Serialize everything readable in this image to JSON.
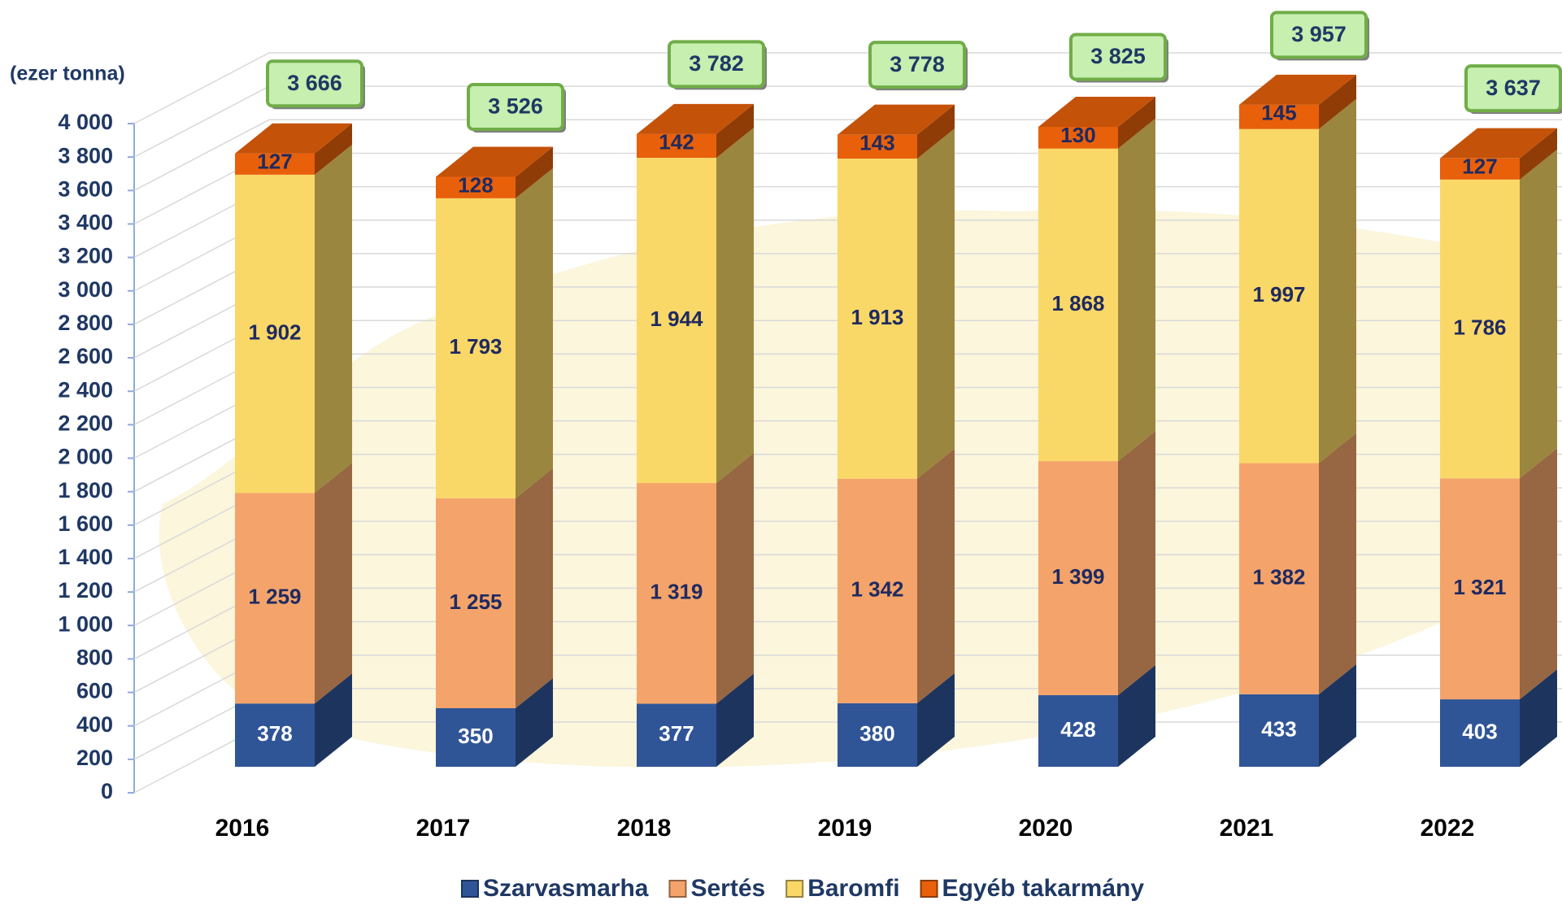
{
  "chart_data": {
    "type": "bar",
    "stacked": true,
    "y_axis_label": "(ezer tonna)",
    "categories": [
      "2016",
      "2017",
      "2018",
      "2019",
      "2020",
      "2021",
      "2022"
    ],
    "series": [
      {
        "name": "Szarvasmarha",
        "color": "#2f5597",
        "values": [
          378,
          350,
          377,
          380,
          428,
          433,
          403
        ]
      },
      {
        "name": "Sertés",
        "color": "#f4a46a",
        "values": [
          1259,
          1255,
          1319,
          1342,
          1399,
          1382,
          1321
        ],
        "value_labels": [
          "1 259",
          "1 255",
          "1 319",
          "1 342",
          "1 399",
          "1 382",
          "1 321"
        ]
      },
      {
        "name": "Baromfi",
        "color": "#fad868",
        "values": [
          1902,
          1793,
          1944,
          1913,
          1868,
          1997,
          1786
        ],
        "value_labels": [
          "1 902",
          "1 793",
          "1 944",
          "1 913",
          "1 868",
          "1 997",
          "1 786"
        ]
      },
      {
        "name": "Egyéb takarmány",
        "color": "#e8600a",
        "values": [
          127,
          128,
          142,
          143,
          130,
          145,
          127
        ]
      }
    ],
    "totals": {
      "values": [
        3666,
        3526,
        3782,
        3778,
        3825,
        3957,
        3637
      ],
      "value_labels": [
        "3 666",
        "3 526",
        "3 782",
        "3 778",
        "3 825",
        "3 957",
        "3 637"
      ]
    },
    "ylim": [
      0,
      4000
    ],
    "yticks": [
      0,
      200,
      400,
      600,
      800,
      {
        "value": 1000,
        "label": "1 000"
      },
      {
        "value": 1200,
        "label": "1 200"
      },
      {
        "value": 1400,
        "label": "1 400"
      },
      {
        "value": 1600,
        "label": "1 600"
      },
      {
        "value": 1800,
        "label": "1 800"
      },
      {
        "value": 2000,
        "label": "2 000"
      },
      {
        "value": 2200,
        "label": "2 200"
      },
      {
        "value": 2400,
        "label": "2 400"
      },
      {
        "value": 2600,
        "label": "2 600"
      },
      {
        "value": 2800,
        "label": "2 800"
      },
      {
        "value": 3000,
        "label": "3 000"
      },
      {
        "value": 3200,
        "label": "3 200"
      },
      {
        "value": 3400,
        "label": "3 400"
      },
      {
        "value": 3600,
        "label": "3 600"
      },
      {
        "value": 3800,
        "label": "3 800"
      },
      {
        "value": 4000,
        "label": "4 000"
      }
    ],
    "grid": true,
    "legend": "bottom"
  }
}
